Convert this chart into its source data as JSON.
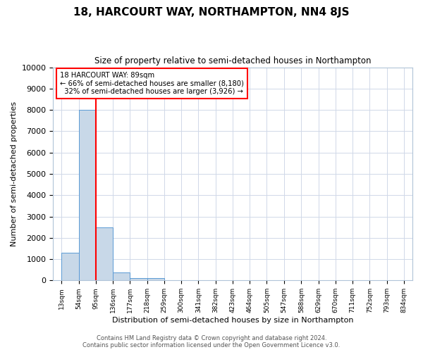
{
  "title": "18, HARCOURT WAY, NORTHAMPTON, NN4 8JS",
  "subtitle": "Size of property relative to semi-detached houses in Northampton",
  "xlabel": "Distribution of semi-detached houses by size in Northampton",
  "ylabel": "Number of semi-detached properties",
  "bar_edges": [
    13,
    54,
    95,
    136,
    177,
    218,
    259,
    300,
    341,
    382,
    423,
    464,
    505,
    547,
    588,
    629,
    670,
    711,
    752,
    793,
    834
  ],
  "bar_heights": [
    1300,
    8000,
    2500,
    380,
    120,
    100,
    0,
    0,
    0,
    0,
    0,
    0,
    0,
    0,
    0,
    0,
    0,
    0,
    0,
    0
  ],
  "bar_color": "#c8d8e8",
  "bar_edgecolor": "#5b9bd5",
  "property_line_x": 95,
  "property_size": 89,
  "pct_smaller": 66,
  "n_smaller": 8180,
  "pct_larger": 32,
  "n_larger": 3926,
  "ylim": [
    0,
    10000
  ],
  "yticks": [
    0,
    1000,
    2000,
    3000,
    4000,
    5000,
    6000,
    7000,
    8000,
    9000,
    10000
  ],
  "footer_line1": "Contains HM Land Registry data © Crown copyright and database right 2024.",
  "footer_line2": "Contains public sector information licensed under the Open Government Licence v3.0.",
  "background_color": "#ffffff",
  "grid_color": "#d0d8e8"
}
